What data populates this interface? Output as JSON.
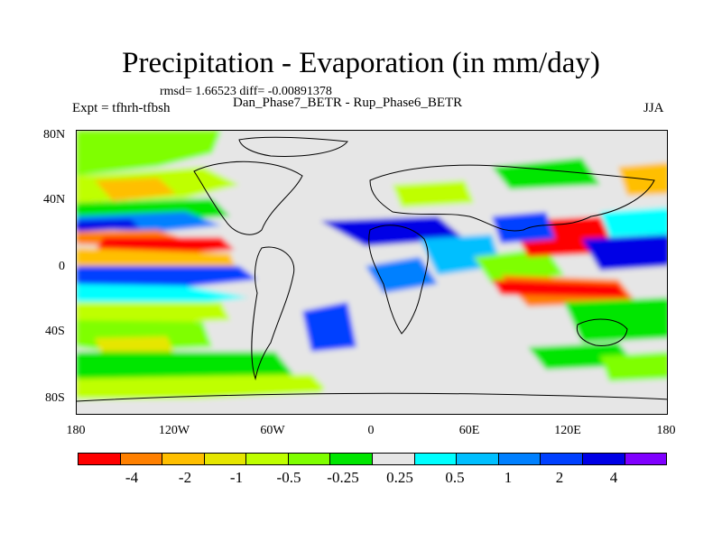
{
  "title": "Precipitation - Evaporation (in mm/day)",
  "stats": "rmsd= 1.66523 diff= -0.00891378",
  "experiment": "Expt = tfhrh-tfbsh",
  "comparison": "Dan_Phase7_BETR - Rup_Phase6_BETR",
  "season": "JJA",
  "lat_labels": [
    "80N",
    "40N",
    "0",
    "40S",
    "80S"
  ],
  "lon_labels": [
    "180",
    "120W",
    "60W",
    "0",
    "60E",
    "120E",
    "180"
  ],
  "colorbar": {
    "colors": [
      "#ff0000",
      "#ff8000",
      "#ffbf00",
      "#e6e600",
      "#bfff00",
      "#7fff00",
      "#00e600",
      "#e6e6e6",
      "#00ffff",
      "#00bfff",
      "#0080ff",
      "#0040ff",
      "#0000e6",
      "#8000ff"
    ],
    "labels": [
      "-4",
      "-2",
      "-1",
      "-0.5",
      "-0.25",
      "0.25",
      "0.5",
      "1",
      "2",
      "4"
    ]
  }
}
